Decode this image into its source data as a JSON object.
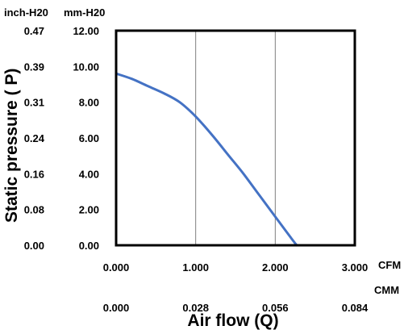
{
  "chart_data": {
    "type": "line",
    "ylabel": "Static  pressure ( P)",
    "xlabel": "Air flow (Q)",
    "units": {
      "y_left_outer": "inch-H20",
      "y_left_inner": "mm-H20",
      "x_primary": "CFM",
      "x_secondary": "CMM"
    },
    "xlim": [
      0,
      3
    ],
    "ylim": [
      0,
      12
    ],
    "grid": true,
    "x_ticks": [
      "0.000",
      "1.000",
      "2.000",
      "3.000"
    ],
    "x_secondary_ticks": [
      "0.000",
      "0.028",
      "0.056",
      "0.084"
    ],
    "y_ticks": [
      "0.00",
      "2.00",
      "4.00",
      "6.00",
      "8.00",
      "10.00",
      "12.00"
    ],
    "y_secondary_ticks": [
      "0.00",
      "0.08",
      "0.16",
      "0.24",
      "0.31",
      "0.39",
      "0.47"
    ],
    "series": [
      {
        "color": "#4472C4",
        "x": [
          0.0,
          0.2,
          0.4,
          0.6,
          0.8,
          1.0,
          1.2,
          1.4,
          1.6,
          1.8,
          2.0,
          2.2,
          2.27
        ],
        "values": [
          9.6,
          9.3,
          8.9,
          8.5,
          8.0,
          7.2,
          6.2,
          5.1,
          4.0,
          2.8,
          1.6,
          0.4,
          0.0
        ]
      }
    ]
  }
}
